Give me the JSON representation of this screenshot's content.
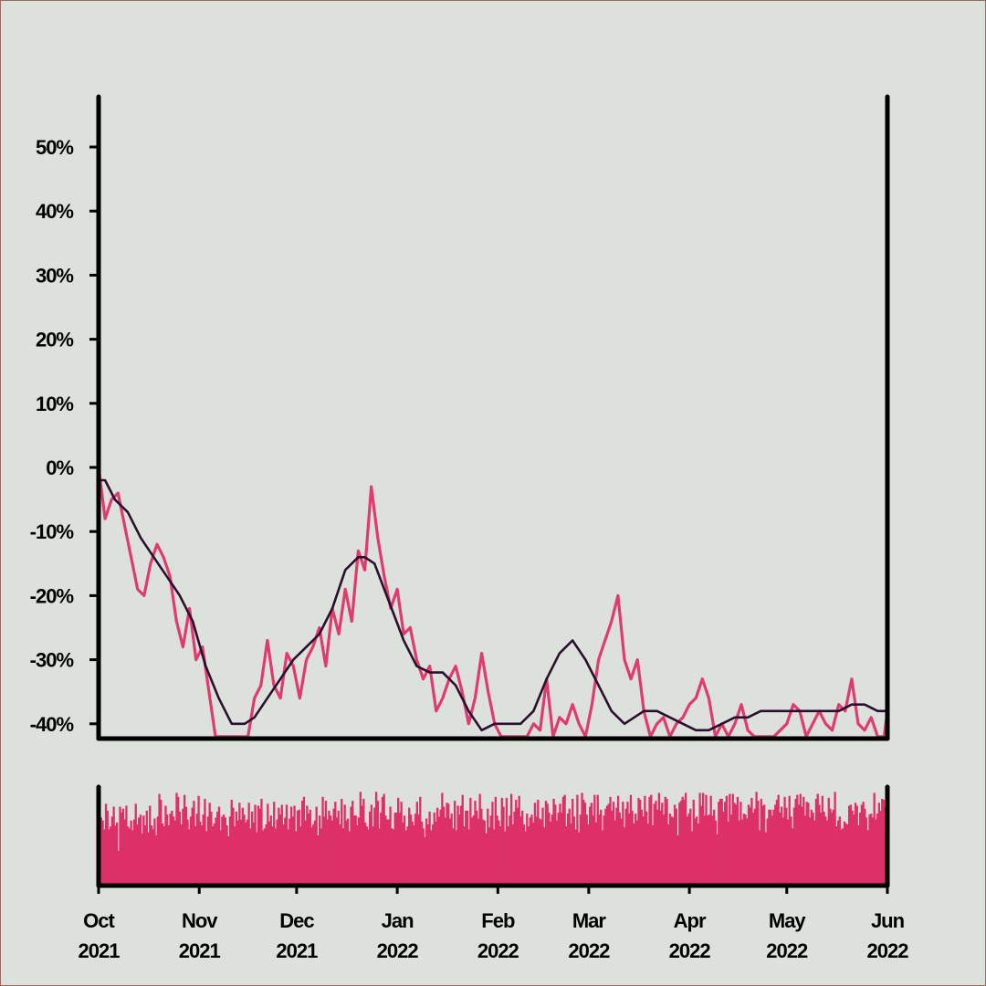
{
  "chart_data": [
    {
      "type": "line",
      "title": "",
      "xlabel": "",
      "ylabel": "",
      "xlim": [
        "2021-10-01",
        "2022-06-01"
      ],
      "ylim": [
        -42,
        57
      ],
      "grid": false,
      "legend": "none",
      "y_ticks": [
        {
          "value": 50,
          "label": "50%"
        },
        {
          "value": 40,
          "label": "40%"
        },
        {
          "value": 30,
          "label": "30%"
        },
        {
          "value": 20,
          "label": "20%"
        },
        {
          "value": 10,
          "label": "10%"
        },
        {
          "value": 0,
          "label": "0%"
        },
        {
          "value": -10,
          "label": "-10%"
        },
        {
          "value": -20,
          "label": "-20%"
        },
        {
          "value": -30,
          "label": "-30%"
        },
        {
          "value": -40,
          "label": "-40%"
        }
      ],
      "series": [
        {
          "color": "#e03a6e",
          "style": "raw",
          "x": [
            "2021-10-01",
            "2021-10-03",
            "2021-10-05",
            "2021-10-07",
            "2021-10-09",
            "2021-10-11",
            "2021-10-13",
            "2021-10-15",
            "2021-10-17",
            "2021-10-19",
            "2021-10-21",
            "2021-10-23",
            "2021-10-25",
            "2021-10-27",
            "2021-10-29",
            "2021-10-31",
            "2021-11-02",
            "2021-11-04",
            "2021-11-06",
            "2021-11-08",
            "2021-11-10",
            "2021-11-12",
            "2021-11-14",
            "2021-11-16",
            "2021-11-18",
            "2021-11-20",
            "2021-11-22",
            "2021-11-24",
            "2021-11-26",
            "2021-11-28",
            "2021-11-30",
            "2021-12-02",
            "2021-12-04",
            "2021-12-06",
            "2021-12-08",
            "2021-12-10",
            "2021-12-12",
            "2021-12-14",
            "2021-12-16",
            "2021-12-18",
            "2021-12-20",
            "2021-12-22",
            "2021-12-24",
            "2021-12-26",
            "2021-12-28",
            "2021-12-30",
            "2022-01-01",
            "2022-01-03",
            "2022-01-05",
            "2022-01-07",
            "2022-01-09",
            "2022-01-11",
            "2022-01-13",
            "2022-01-15",
            "2022-01-17",
            "2022-01-19",
            "2022-01-21",
            "2022-01-23",
            "2022-01-25",
            "2022-01-27",
            "2022-01-29",
            "2022-01-31",
            "2022-02-02",
            "2022-02-04",
            "2022-02-06",
            "2022-02-08",
            "2022-02-10",
            "2022-02-12",
            "2022-02-14",
            "2022-02-16",
            "2022-02-18",
            "2022-02-20",
            "2022-02-22",
            "2022-02-24",
            "2022-02-26",
            "2022-02-28",
            "2022-03-02",
            "2022-03-04",
            "2022-03-06",
            "2022-03-08",
            "2022-03-10",
            "2022-03-12",
            "2022-03-14",
            "2022-03-16",
            "2022-03-18",
            "2022-03-20",
            "2022-03-22",
            "2022-03-24",
            "2022-03-26",
            "2022-03-28",
            "2022-03-30",
            "2022-04-01",
            "2022-04-03",
            "2022-04-05",
            "2022-04-07",
            "2022-04-09",
            "2022-04-11",
            "2022-04-13",
            "2022-04-15",
            "2022-04-17",
            "2022-04-19",
            "2022-04-21",
            "2022-04-23",
            "2022-04-25",
            "2022-04-27",
            "2022-04-29",
            "2022-05-01",
            "2022-05-03",
            "2022-05-05",
            "2022-05-07",
            "2022-05-09",
            "2022-05-11",
            "2022-05-13",
            "2022-05-15",
            "2022-05-17",
            "2022-05-19",
            "2022-05-21",
            "2022-05-23",
            "2022-05-25",
            "2022-05-27",
            "2022-05-29",
            "2022-05-31",
            "2022-06-01"
          ],
          "y": [
            0,
            -8,
            -5,
            -4,
            -9,
            -14,
            -19,
            -20,
            -15,
            -12,
            -14,
            -17,
            -24,
            -28,
            -22,
            -30,
            -28,
            -35,
            -42,
            -42,
            -42,
            -42,
            -42,
            -42,
            -36,
            -34,
            -27,
            -34,
            -36,
            -29,
            -31,
            -36,
            -30,
            -28,
            -25,
            -31,
            -22,
            -26,
            -19,
            -24,
            -13,
            -16,
            -3,
            -11,
            -17,
            -22,
            -19,
            -26,
            -25,
            -30,
            -33,
            -31,
            -38,
            -36,
            -33,
            -31,
            -35,
            -40,
            -36,
            -29,
            -35,
            -40,
            -42,
            -42,
            -42,
            -42,
            -42,
            -40,
            -41,
            -33,
            -42,
            -39,
            -40,
            -37,
            -40,
            -42,
            -37,
            -30,
            -27,
            -24,
            -20,
            -30,
            -33,
            -30,
            -38,
            -42,
            -40,
            -39,
            -42,
            -40,
            -39,
            -37,
            -36,
            -33,
            -36,
            -42,
            -40,
            -42,
            -40,
            -37,
            -41,
            -42,
            -42,
            -42,
            -42,
            -41,
            -40,
            -37,
            -38,
            -42,
            -40,
            -38,
            -40,
            -41,
            -37,
            -38,
            -33,
            -40,
            -41,
            -39,
            -42,
            -42,
            -38
          ]
        },
        {
          "color": "#2b0f2e",
          "style": "smoothed",
          "x": [
            "2021-10-01",
            "2021-10-03",
            "2021-10-06",
            "2021-10-10",
            "2021-10-14",
            "2021-10-18",
            "2021-10-22",
            "2021-10-26",
            "2021-10-30",
            "2021-11-03",
            "2021-11-07",
            "2021-11-11",
            "2021-11-15",
            "2021-11-18",
            "2021-11-22",
            "2021-11-26",
            "2021-11-30",
            "2021-12-04",
            "2021-12-08",
            "2021-12-12",
            "2021-12-16",
            "2021-12-20",
            "2021-12-22",
            "2021-12-25",
            "2021-12-28",
            "2021-12-31",
            "2022-01-03",
            "2022-01-07",
            "2022-01-11",
            "2022-01-15",
            "2022-01-19",
            "2022-01-23",
            "2022-01-27",
            "2022-01-31",
            "2022-02-04",
            "2022-02-08",
            "2022-02-12",
            "2022-02-16",
            "2022-02-20",
            "2022-02-24",
            "2022-02-28",
            "2022-03-04",
            "2022-03-08",
            "2022-03-12",
            "2022-03-15",
            "2022-03-18",
            "2022-03-22",
            "2022-03-26",
            "2022-03-30",
            "2022-04-03",
            "2022-04-07",
            "2022-04-11",
            "2022-04-15",
            "2022-04-19",
            "2022-04-23",
            "2022-04-27",
            "2022-05-01",
            "2022-05-05",
            "2022-05-09",
            "2022-05-13",
            "2022-05-17",
            "2022-05-21",
            "2022-05-25",
            "2022-05-29",
            "2022-06-01"
          ],
          "y": [
            -2,
            -2,
            -5,
            -7,
            -11,
            -14,
            -17,
            -20,
            -24,
            -31,
            -36,
            -40,
            -40,
            -39,
            -36,
            -33,
            -30,
            -28,
            -26,
            -22,
            -16,
            -14,
            -14,
            -15,
            -19,
            -23,
            -27,
            -31,
            -32,
            -32,
            -34,
            -38,
            -41,
            -40,
            -40,
            -40,
            -38,
            -33,
            -29,
            -27,
            -30,
            -34,
            -38,
            -40,
            -39,
            -38,
            -38,
            -39,
            -40,
            -41,
            -41,
            -40,
            -39,
            -39,
            -38,
            -38,
            -38,
            -38,
            -38,
            -38,
            -38,
            -37,
            -37,
            -38,
            -38
          ]
        }
      ]
    },
    {
      "type": "bar",
      "title": "",
      "xlabel": "",
      "ylabel": "",
      "color": "#dd3068",
      "x_ticks": [
        {
          "date": "2021-10-01",
          "month": "Oct",
          "year": "2021"
        },
        {
          "date": "2021-11-01",
          "month": "Nov",
          "year": "2021"
        },
        {
          "date": "2021-12-01",
          "month": "Dec",
          "year": "2021"
        },
        {
          "date": "2022-01-01",
          "month": "Jan",
          "year": "2022"
        },
        {
          "date": "2022-02-01",
          "month": "Feb",
          "year": "2022"
        },
        {
          "date": "2022-03-01",
          "month": "Mar",
          "year": "2022"
        },
        {
          "date": "2022-04-01",
          "month": "Apr",
          "year": "2022"
        },
        {
          "date": "2022-05-01",
          "month": "May",
          "year": "2022"
        },
        {
          "date": "2022-06-01",
          "month": "Jun",
          "year": "2022"
        }
      ],
      "values": [
        0.57,
        0.69,
        0.66,
        0.57,
        0.83,
        0.76,
        0.57,
        0.6,
        0.7,
        0.8,
        0.61,
        0.64,
        0.35,
        0.8,
        0.74,
        0.78,
        0.67,
        0.81,
        0.6,
        0.58,
        0.66,
        0.56,
        0.67,
        0.83,
        0.62,
        0.69,
        0.72,
        0.53,
        0.71,
        0.61,
        0.76,
        0.54,
        0.81,
        0.61,
        0.57,
        0.68,
        0.51,
        0.7,
        0.93,
        0.87,
        0.63,
        0.6,
        0.81,
        0.72,
        0.61,
        0.73,
        0.76,
        0.7,
        0.66,
        0.94,
        0.9,
        0.75,
        0.62,
        0.78,
        0.92,
        0.8,
        0.67,
        0.57,
        0.7,
        0.79,
        0.86,
        0.6,
        0.73,
        0.91,
        0.65,
        0.61,
        0.72,
        0.88,
        0.55,
        0.7,
        0.84,
        0.75,
        0.6,
        0.63,
        0.69,
        0.75,
        0.8,
        0.56,
        0.7,
        0.72,
        0.69,
        0.61,
        0.5,
        0.7,
        0.87,
        0.79,
        0.6,
        0.75,
        0.66,
        0.84,
        0.67,
        0.79,
        0.72,
        0.64,
        0.67,
        0.84,
        0.58,
        0.75,
        0.64,
        0.82,
        0.54,
        0.81,
        0.78,
        0.88,
        0.56,
        0.58,
        0.62,
        0.83,
        0.65,
        0.71,
        0.6,
        0.85,
        0.58,
        0.67,
        0.79,
        0.72,
        0.82,
        0.62,
        0.69,
        0.82,
        0.57,
        0.68,
        0.8,
        0.7,
        0.81,
        0.55,
        0.76,
        0.77,
        0.6,
        0.86,
        0.9,
        0.66,
        0.81,
        0.73,
        0.77,
        0.59,
        0.62,
        0.66,
        0.8,
        0.51,
        0.71,
        0.58,
        0.9,
        0.7,
        0.86,
        0.67,
        0.76,
        0.71,
        0.66,
        0.78,
        0.85,
        0.69,
        0.76,
        0.62,
        0.88,
        0.58,
        0.82,
        0.66,
        0.68,
        0.55,
        0.8,
        0.86,
        0.71,
        0.71,
        0.61,
        0.69,
        0.95,
        0.81,
        0.88,
        0.64,
        0.6,
        0.57,
        0.75,
        0.82,
        0.6,
        0.79,
        0.95,
        0.86,
        0.58,
        0.74,
        0.9,
        0.93,
        0.71,
        0.67,
        0.67,
        0.8,
        0.58,
        0.57,
        0.74,
        0.74,
        0.89,
        0.74,
        0.85,
        0.64,
        0.71,
        0.56,
        0.6,
        0.79,
        0.72,
        0.65,
        0.61,
        0.73,
        0.85,
        0.72,
        0.9,
        0.65,
        0.58,
        0.49,
        0.68,
        0.62,
        0.75,
        0.56,
        0.62,
        0.74,
        0.65,
        0.79,
        0.7,
        0.77,
        0.94,
        0.8,
        0.69,
        0.84,
        0.83,
        0.68,
        0.73,
        0.58,
        0.86,
        0.56,
        0.81,
        0.72,
        0.81,
        0.92,
        0.6,
        0.76,
        0.76,
        0.57,
        0.89,
        0.69,
        0.71,
        0.86,
        0.76,
        0.68,
        0.93,
        0.78,
        0.67,
        0.66,
        0.53,
        0.78,
        0.59,
        0.71,
        0.85,
        0.57,
        0.9,
        0.71,
        0.66,
        0.6,
        0.89,
        0.8,
        0.55,
        0.89,
        0.6,
        0.71,
        0.93,
        0.62,
        0.75,
        0.87,
        0.79,
        0.91,
        0.7,
        0.76,
        0.62,
        0.55,
        0.73,
        0.6,
        0.69,
        0.72,
        0.64,
        0.84,
        0.7,
        0.87,
        0.68,
        0.67,
        0.79,
        0.59,
        0.86,
        0.83,
        0.74,
        0.65,
        0.72,
        0.88,
        0.82,
        0.66,
        0.74,
        0.83,
        0.74,
        0.9,
        0.92,
        0.6,
        0.73,
        0.78,
        0.63,
        0.88,
        0.7,
        0.57,
        0.92,
        0.54,
        0.72,
        0.94,
        0.87,
        0.84,
        0.72,
        0.62,
        0.8,
        0.84,
        0.71,
        0.92,
        0.64,
        0.92,
        0.72,
        0.77,
        0.56,
        0.71,
        0.78,
        0.81,
        0.83,
        0.9,
        0.76,
        0.85,
        0.66,
        0.79,
        0.91,
        0.74,
        0.68,
        0.85,
        0.59,
        0.78,
        0.85,
        0.73,
        0.92,
        0.76,
        0.63,
        0.73,
        0.66,
        0.89,
        0.87,
        0.77,
        0.7,
        0.91,
        0.75,
        0.63,
        0.9,
        0.92,
        0.61,
        0.83,
        0.86,
        0.77,
        0.94,
        0.76,
        0.84,
        0.72,
        0.9,
        0.88,
        0.62,
        0.73,
        0.7,
        0.69,
        0.82,
        0.78,
        0.51,
        0.84,
        0.86,
        0.9,
        0.87,
        0.94,
        0.7,
        0.73,
        0.78,
        0.55,
        0.87,
        0.68,
        0.7,
        0.63,
        0.94,
        0.81,
        0.94,
        0.71,
        0.92,
        0.71,
        0.72,
        0.91,
        0.71,
        0.77,
        0.66,
        0.52,
        0.85,
        0.88,
        0.88,
        0.75,
        0.85,
        0.91,
        0.65,
        0.93,
        0.72,
        0.93,
        0.84,
        0.82,
        0.9,
        0.66,
        0.85,
        0.67,
        0.73,
        0.72,
        0.68,
        0.82,
        0.79,
        0.89,
        0.74,
        0.78,
        0.95,
        0.86,
        0.56,
        0.88,
        0.81,
        0.82,
        0.54,
        0.68,
        0.77,
        0.77,
        0.71,
        0.77,
        0.82,
        0.87,
        0.92,
        0.74,
        0.8,
        0.69,
        0.9,
        0.79,
        0.67,
        0.91,
        0.7,
        0.58,
        0.79,
        0.88,
        0.92,
        0.82,
        0.93,
        0.8,
        0.9,
        0.71,
        0.85,
        0.84,
        0.69,
        0.77,
        0.74,
        0.66,
        0.88,
        0.93,
        0.82,
        0.74,
        0.91,
        0.75,
        0.7,
        0.66,
        0.89,
        0.78,
        0.74,
        0.77,
        0.95,
        0.6,
        0.66,
        0.7,
        0.57,
        0.58,
        0.65,
        0.63,
        0.62,
        0.81,
        0.82,
        0.76,
        0.72,
        0.84,
        0.81,
        0.61,
        0.74,
        0.82,
        0.85,
        0.78,
        0.69,
        0.56,
        0.72,
        0.73,
        0.69,
        0.94,
        0.67,
        0.73,
        0.84,
        0.76,
        0.88,
        0.87,
        0.8,
        0.58
      ]
    }
  ]
}
